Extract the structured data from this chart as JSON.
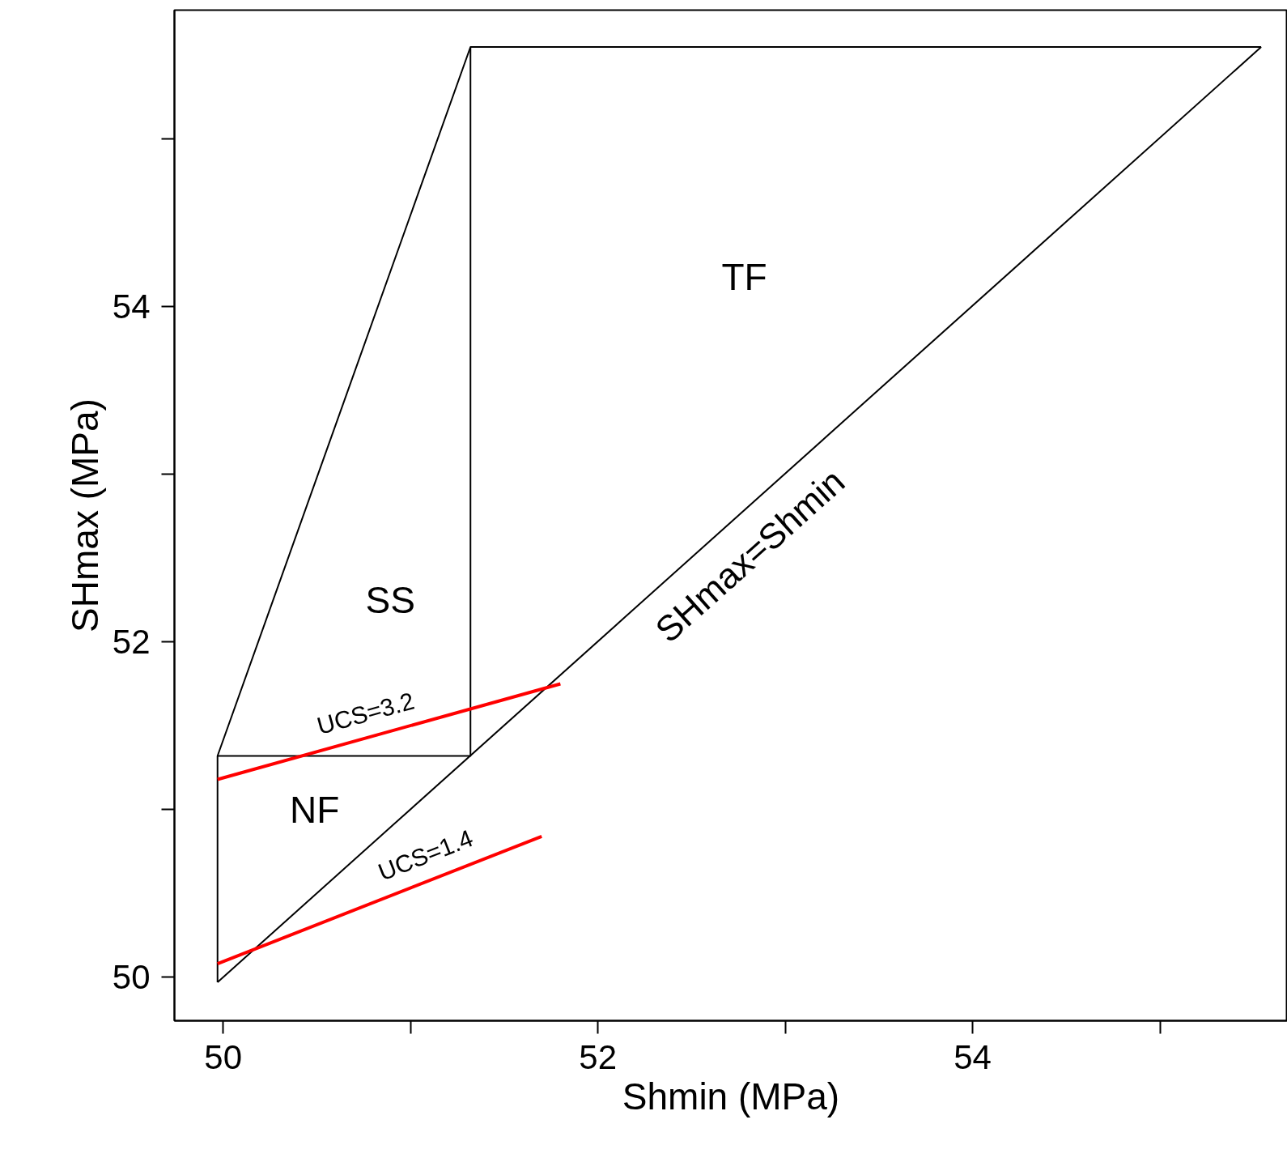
{
  "chart_data": {
    "type": "line",
    "xlabel": "Shmin (MPa)",
    "ylabel": "SHmax (MPa)",
    "xlim": [
      49.74,
      55.68
    ],
    "ylim": [
      49.74,
      55.77
    ],
    "xticks": [
      50,
      {
        "value": 51,
        "label": null
      },
      52,
      {
        "value": 53,
        "label": null
      },
      54,
      {
        "value": 55,
        "label": null
      }
    ],
    "yticks": [
      50,
      {
        "value": 51,
        "label": null
      },
      52,
      {
        "value": 53,
        "label": null
      },
      54,
      {
        "value": 55,
        "label": null
      }
    ],
    "line_style": "solid",
    "series": [
      {
        "name": "SHmax=Shmin",
        "color": "#000000",
        "x": [
          49.97,
          55.54
        ],
        "values": [
          49.97,
          55.55
        ]
      },
      {
        "color": "#000000",
        "x": [
          49.97,
          49.97,
          51.32,
          55.54
        ],
        "values": [
          49.97,
          51.32,
          55.55,
          55.55
        ]
      },
      {
        "color": "#000000",
        "x": [
          49.97,
          51.32,
          51.32
        ],
        "values": [
          51.32,
          51.32,
          55.55
        ]
      },
      {
        "color": "#ff0000",
        "x": [
          49.97,
          51.8
        ],
        "values": [
          51.18,
          51.75
        ]
      },
      {
        "color": "#ff0000",
        "x": [
          49.97,
          51.7
        ],
        "values": [
          50.08,
          50.84
        ]
      }
    ],
    "annotations": [
      "NF",
      "SS",
      "TF",
      {
        "text": "UCS=3.2",
        "x": 50.76,
        "y": 51.43
      },
      {
        "text": "UCS=1.4",
        "x": 51.08,
        "y": 50.57
      }
    ]
  }
}
